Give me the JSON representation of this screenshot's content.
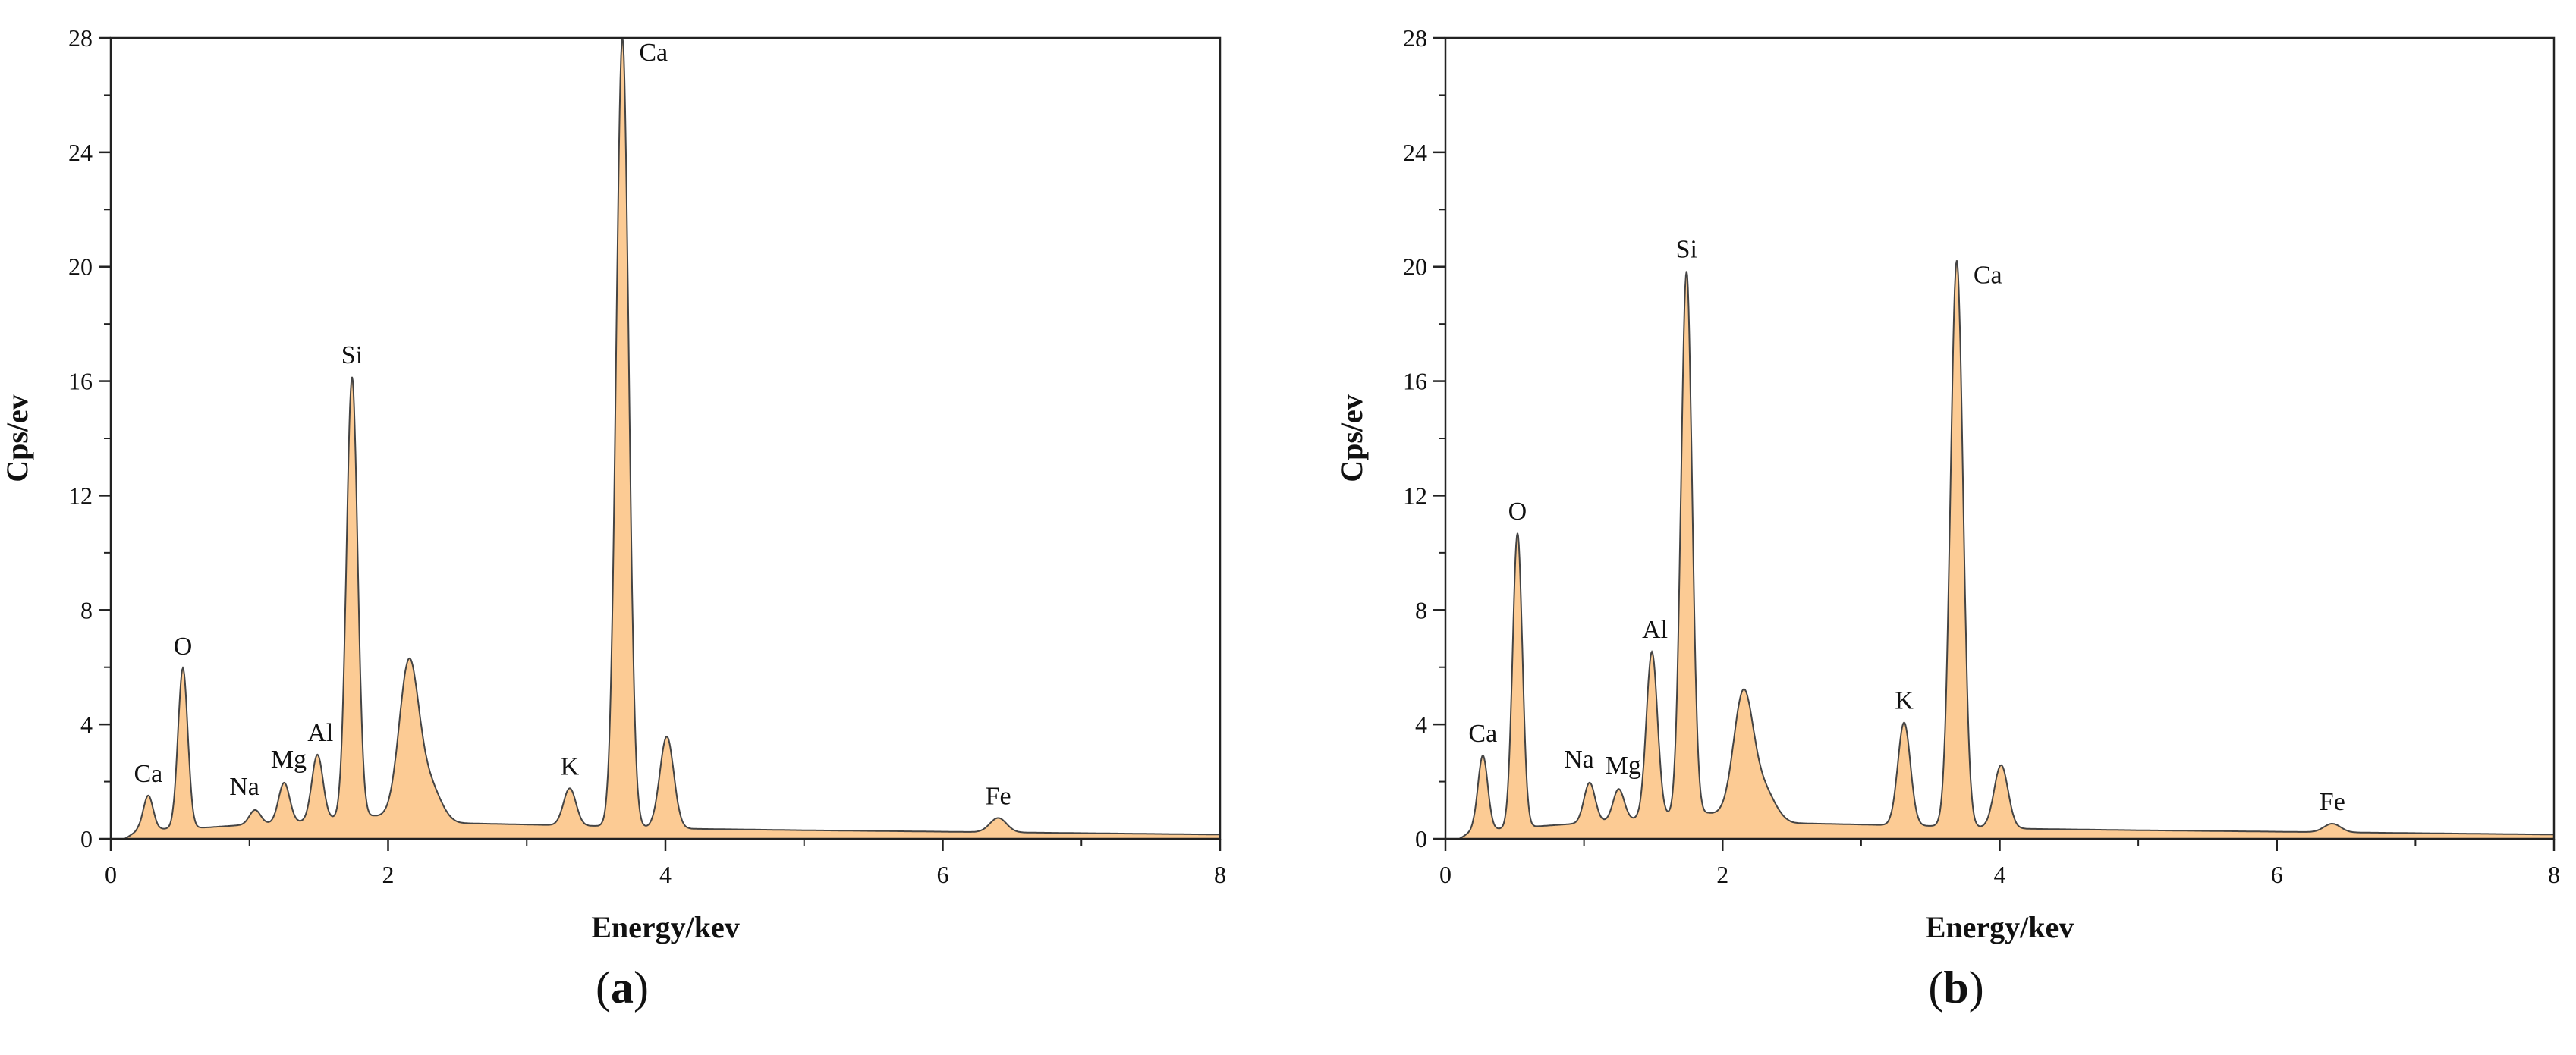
{
  "figure": {
    "panels": [
      {
        "caption_letter": "a",
        "caption_open": "(",
        "caption_close": ")"
      },
      {
        "caption_letter": "b",
        "caption_open": "(",
        "caption_close": ")"
      }
    ]
  },
  "chart_data": [
    {
      "type": "area",
      "title": "",
      "xlabel": "Energy/kev",
      "ylabel": "Cps/ev",
      "xlim": [
        0,
        8
      ],
      "ylim": [
        0,
        28
      ],
      "xticks": [
        0,
        2,
        4,
        6,
        8
      ],
      "yticks": [
        0,
        4,
        8,
        12,
        16,
        20,
        24,
        28
      ],
      "grid": false,
      "fill_color": "#FCCB94",
      "line_color": "#444444",
      "baseline": [
        [
          0.1,
          0.0
        ],
        [
          0.2,
          0.3
        ],
        [
          0.4,
          0.35
        ],
        [
          0.7,
          0.4
        ],
        [
          1.0,
          0.5
        ],
        [
          1.4,
          0.6
        ],
        [
          1.6,
          0.7
        ],
        [
          1.9,
          0.8
        ],
        [
          2.5,
          0.55
        ],
        [
          3.0,
          0.5
        ],
        [
          3.5,
          0.45
        ],
        [
          3.85,
          0.4
        ],
        [
          4.2,
          0.35
        ],
        [
          5.0,
          0.3
        ],
        [
          6.0,
          0.25
        ],
        [
          7.0,
          0.2
        ],
        [
          8.0,
          0.15
        ]
      ],
      "peaks": [
        {
          "label": "Ca",
          "energy": 0.27,
          "height": 1.2,
          "width": 0.035
        },
        {
          "label": "O",
          "energy": 0.52,
          "height": 5.6,
          "width": 0.035
        },
        {
          "label": "Na",
          "energy": 1.04,
          "height": 0.5,
          "width": 0.04
        },
        {
          "label": "Mg",
          "energy": 1.25,
          "height": 1.4,
          "width": 0.04
        },
        {
          "label": "Al",
          "energy": 1.49,
          "height": 2.3,
          "width": 0.04
        },
        {
          "label": "Si",
          "energy": 1.74,
          "height": 15.4,
          "width": 0.04
        },
        {
          "label": "",
          "energy": 2.15,
          "height": 5.4,
          "width": 0.07
        },
        {
          "label": "",
          "energy": 2.3,
          "height": 1.2,
          "width": 0.08
        },
        {
          "label": "K",
          "energy": 3.31,
          "height": 1.3,
          "width": 0.045
        },
        {
          "label": "Ca",
          "energy": 3.69,
          "height": 27.6,
          "width": 0.045
        },
        {
          "label": "",
          "energy": 4.01,
          "height": 3.2,
          "width": 0.05
        },
        {
          "label": "Fe",
          "energy": 6.4,
          "height": 0.5,
          "width": 0.06
        }
      ]
    },
    {
      "type": "area",
      "title": "",
      "xlabel": "Energy/kev",
      "ylabel": "Cps/ev",
      "xlim": [
        0,
        8
      ],
      "ylim": [
        0,
        28
      ],
      "xticks": [
        0,
        2,
        4,
        6,
        8
      ],
      "yticks": [
        0,
        4,
        8,
        12,
        16,
        20,
        24,
        28
      ],
      "grid": false,
      "fill_color": "#FCCB94",
      "line_color": "#444444",
      "baseline": [
        [
          0.1,
          0.0
        ],
        [
          0.2,
          0.3
        ],
        [
          0.4,
          0.35
        ],
        [
          0.7,
          0.45
        ],
        [
          1.0,
          0.55
        ],
        [
          1.4,
          0.7
        ],
        [
          1.6,
          0.8
        ],
        [
          1.9,
          0.9
        ],
        [
          2.5,
          0.55
        ],
        [
          3.0,
          0.5
        ],
        [
          3.5,
          0.45
        ],
        [
          3.85,
          0.4
        ],
        [
          4.2,
          0.35
        ],
        [
          5.0,
          0.3
        ],
        [
          6.0,
          0.25
        ],
        [
          7.0,
          0.2
        ],
        [
          8.0,
          0.15
        ]
      ],
      "peaks": [
        {
          "label": "Ca",
          "energy": 0.27,
          "height": 2.6,
          "width": 0.035
        },
        {
          "label": "O",
          "energy": 0.52,
          "height": 10.3,
          "width": 0.035
        },
        {
          "label": "Na",
          "energy": 1.04,
          "height": 1.4,
          "width": 0.04
        },
        {
          "label": "Mg",
          "energy": 1.25,
          "height": 1.1,
          "width": 0.04
        },
        {
          "label": "Al",
          "energy": 1.49,
          "height": 5.8,
          "width": 0.04
        },
        {
          "label": "Si",
          "energy": 1.74,
          "height": 19.0,
          "width": 0.04
        },
        {
          "label": "",
          "energy": 2.15,
          "height": 4.3,
          "width": 0.07
        },
        {
          "label": "",
          "energy": 2.3,
          "height": 1.0,
          "width": 0.08
        },
        {
          "label": "K",
          "energy": 3.31,
          "height": 3.6,
          "width": 0.045
        },
        {
          "label": "Ca",
          "energy": 3.69,
          "height": 19.8,
          "width": 0.045
        },
        {
          "label": "",
          "energy": 4.01,
          "height": 2.2,
          "width": 0.05
        },
        {
          "label": "Fe",
          "energy": 6.4,
          "height": 0.3,
          "width": 0.06
        }
      ]
    }
  ]
}
